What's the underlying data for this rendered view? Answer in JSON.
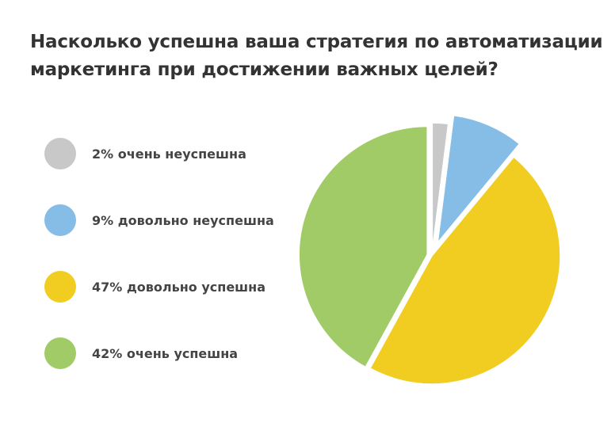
{
  "chart_data": {
    "type": "pie",
    "title_lines": [
      "Насколько успешна ваша стратегия по автоматизации",
      "маркетинга при достижении важных целей?"
    ],
    "slices": [
      {
        "label": "2% очень неуспешна",
        "value": 2,
        "color": "#c8c8c8"
      },
      {
        "label": "9% довольно неуспешна",
        "value": 9,
        "color": "#86bde6"
      },
      {
        "label": "47% довольно успешна",
        "value": 47,
        "color": "#f2cd21"
      },
      {
        "label": "42% очень успешна",
        "value": 42,
        "color": "#a1cb66"
      }
    ],
    "legend_position": "left",
    "exploded": true
  }
}
